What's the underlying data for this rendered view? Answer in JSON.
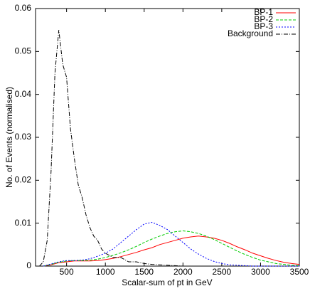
{
  "chart_data": {
    "type": "line",
    "x_label": "Scalar-sum of pt in GeV",
    "y_label": "No. of Events (normalised)",
    "xlim": [
      100,
      3500
    ],
    "ylim": [
      0,
      0.06
    ],
    "xticks": [
      500,
      1000,
      1500,
      2000,
      2500,
      3000,
      3500
    ],
    "yticks": [
      0,
      0.01,
      0.02,
      0.03,
      0.04,
      0.05,
      0.06
    ],
    "legend": "top-right",
    "series": [
      {
        "name": "BP-1",
        "color": "#ff0000",
        "dash": "none",
        "x": [
          200,
          300,
          400,
          500,
          600,
          700,
          800,
          900,
          1000,
          1100,
          1200,
          1300,
          1400,
          1500,
          1600,
          1700,
          1800,
          1900,
          2000,
          2100,
          2200,
          2300,
          2400,
          2500,
          2600,
          2700,
          2800,
          2900,
          3000,
          3100,
          3200,
          3300,
          3400,
          3500
        ],
        "values": [
          0,
          0.0003,
          0.0008,
          0.001,
          0.0012,
          0.0012,
          0.0012,
          0.0013,
          0.0015,
          0.0018,
          0.0022,
          0.0027,
          0.0032,
          0.0038,
          0.0043,
          0.005,
          0.0055,
          0.006,
          0.0065,
          0.0068,
          0.007,
          0.0068,
          0.0065,
          0.006,
          0.0053,
          0.0045,
          0.0038,
          0.003,
          0.0024,
          0.0018,
          0.0013,
          0.0009,
          0.0006,
          0.0004
        ]
      },
      {
        "name": "BP-2",
        "color": "#00cc00",
        "dash": "4 2",
        "x": [
          200,
          300,
          400,
          500,
          600,
          700,
          800,
          900,
          1000,
          1100,
          1200,
          1300,
          1400,
          1500,
          1600,
          1700,
          1800,
          1900,
          2000,
          2100,
          2200,
          2300,
          2400,
          2500,
          2600,
          2700,
          2800,
          2900,
          3000,
          3100,
          3200,
          3300,
          3400,
          3500
        ],
        "values": [
          0,
          0.0004,
          0.0009,
          0.0012,
          0.0013,
          0.0013,
          0.0014,
          0.0016,
          0.002,
          0.0025,
          0.0031,
          0.0038,
          0.0046,
          0.0055,
          0.0063,
          0.007,
          0.0076,
          0.008,
          0.0082,
          0.008,
          0.0076,
          0.007,
          0.0062,
          0.0053,
          0.0044,
          0.0035,
          0.0027,
          0.002,
          0.0014,
          0.001,
          0.0006,
          0.0004,
          0.0002,
          0.0001
        ]
      },
      {
        "name": "BP-3",
        "color": "#0000ff",
        "dash": "2 2",
        "x": [
          200,
          300,
          400,
          500,
          600,
          700,
          800,
          900,
          1000,
          1100,
          1200,
          1300,
          1400,
          1500,
          1600,
          1700,
          1800,
          1900,
          2000,
          2100,
          2200,
          2300,
          2400,
          2500,
          2600,
          2700,
          2800,
          2900,
          3000,
          3100,
          3200,
          3300,
          3400,
          3500
        ],
        "values": [
          0,
          0.0005,
          0.001,
          0.0013,
          0.0013,
          0.0014,
          0.0017,
          0.0023,
          0.003,
          0.004,
          0.0055,
          0.007,
          0.0085,
          0.0098,
          0.0102,
          0.0095,
          0.0085,
          0.007,
          0.0055,
          0.004,
          0.0028,
          0.0018,
          0.0011,
          0.0006,
          0.0003,
          0.0002,
          0.0001,
          0,
          0,
          0,
          0,
          0,
          0,
          0
        ]
      },
      {
        "name": "Background",
        "color": "#000000",
        "dash": "6 2 1 2",
        "x": [
          150,
          200,
          250,
          300,
          350,
          400,
          450,
          500,
          550,
          600,
          650,
          700,
          750,
          800,
          850,
          900,
          950,
          1000,
          1100,
          1200,
          1300,
          1400,
          1500,
          1600,
          1700,
          1800,
          1900,
          2000
        ],
        "values": [
          0,
          0.001,
          0.006,
          0.022,
          0.045,
          0.055,
          0.047,
          0.044,
          0.032,
          0.025,
          0.019,
          0.016,
          0.012,
          0.009,
          0.007,
          0.006,
          0.004,
          0.003,
          0.002,
          0.002,
          0.001,
          0.001,
          0.0006,
          0.0004,
          0.0003,
          0.0002,
          0.0001,
          0
        ]
      }
    ]
  }
}
